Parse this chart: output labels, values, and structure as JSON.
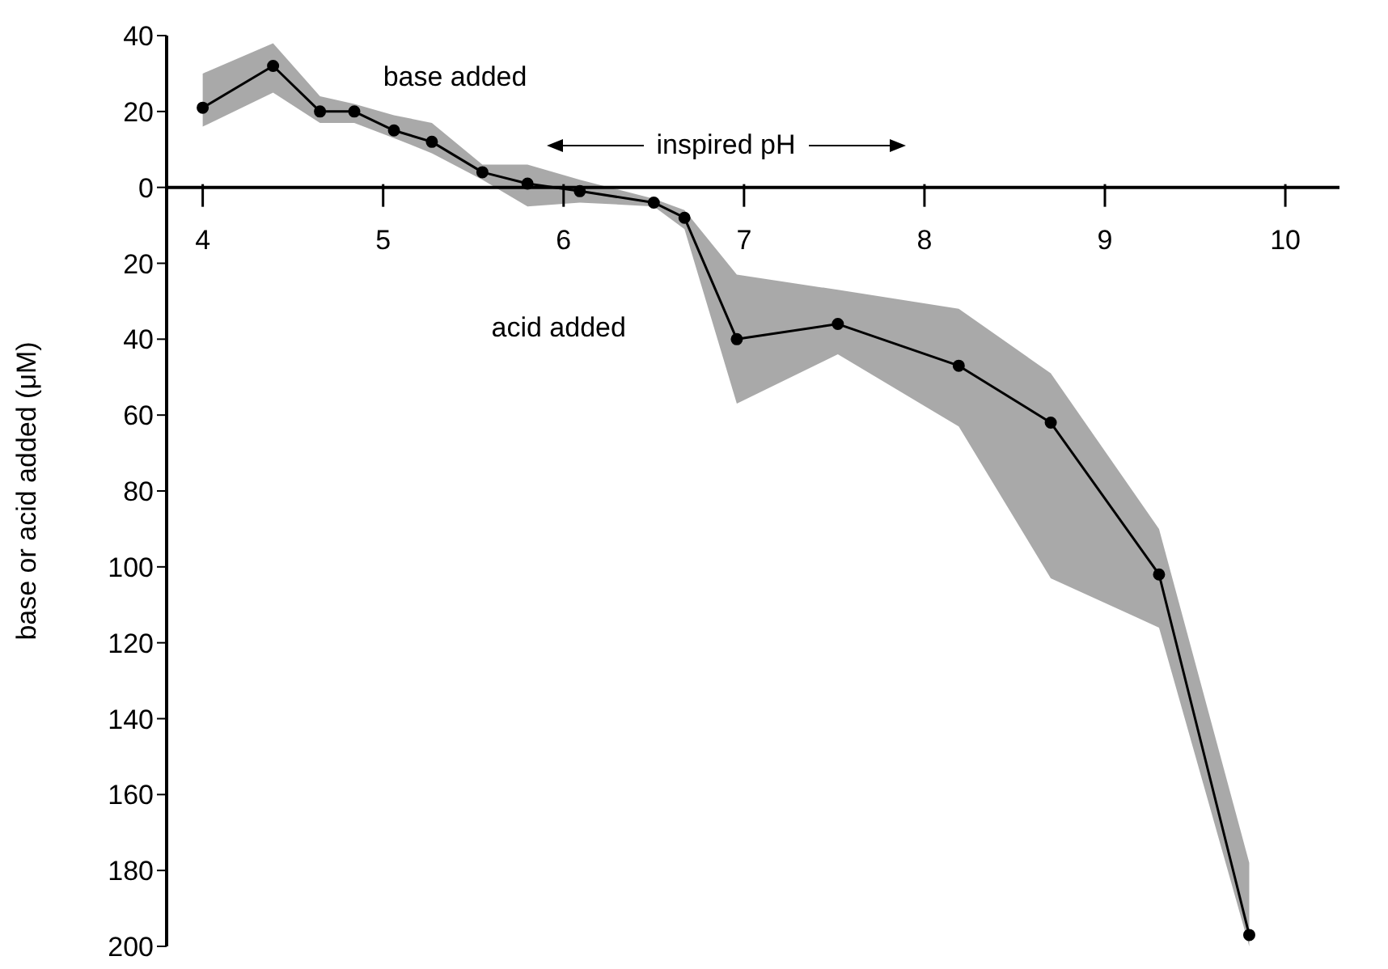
{
  "chart_data": {
    "type": "line",
    "xlabel": "inspired pH",
    "ylabel": "base or acid added (μM)",
    "annotations": [
      "base added",
      "acid added"
    ],
    "x": [
      4.0,
      4.39,
      4.65,
      4.84,
      5.06,
      5.27,
      5.55,
      5.8,
      6.09,
      6.5,
      6.67,
      6.96,
      7.52,
      8.19,
      8.7,
      9.3,
      9.8
    ],
    "series": [
      {
        "color": "#000000",
        "values": [
          21,
          32,
          20,
          20,
          15,
          12,
          4,
          1,
          -1,
          -4,
          -8,
          -40,
          -36,
          -47,
          -62,
          -102,
          -197
        ],
        "upper": [
          30,
          38,
          24,
          22,
          19,
          17,
          6,
          6,
          2,
          -3,
          -6,
          -23,
          -27,
          -32,
          -49,
          -90,
          -178
        ],
        "lower": [
          16,
          25,
          17,
          17,
          13,
          9,
          2,
          -5,
          -4,
          -5,
          -11,
          -57,
          -44,
          -63,
          -103,
          -116,
          -200
        ]
      }
    ],
    "xlim": [
      3.8,
      10.3
    ],
    "xticks": [
      4,
      5,
      6,
      7,
      8,
      9,
      10
    ],
    "ylim": [
      -200,
      40
    ],
    "yticks": [
      {
        "value": 40,
        "label": "40"
      },
      {
        "value": 20,
        "label": "20"
      },
      {
        "value": 0,
        "label": "0"
      },
      {
        "value": -20,
        "label": "20"
      },
      {
        "value": -40,
        "label": "40"
      },
      {
        "value": -60,
        "label": "60"
      },
      {
        "value": -80,
        "label": "80"
      },
      {
        "value": -100,
        "label": "100"
      },
      {
        "value": -120,
        "label": "120"
      },
      {
        "value": -140,
        "label": "140"
      },
      {
        "value": -160,
        "label": "160"
      },
      {
        "value": -180,
        "label": "180"
      },
      {
        "value": -200,
        "label": "200"
      }
    ],
    "marker": "circle",
    "line_style": "solid"
  }
}
